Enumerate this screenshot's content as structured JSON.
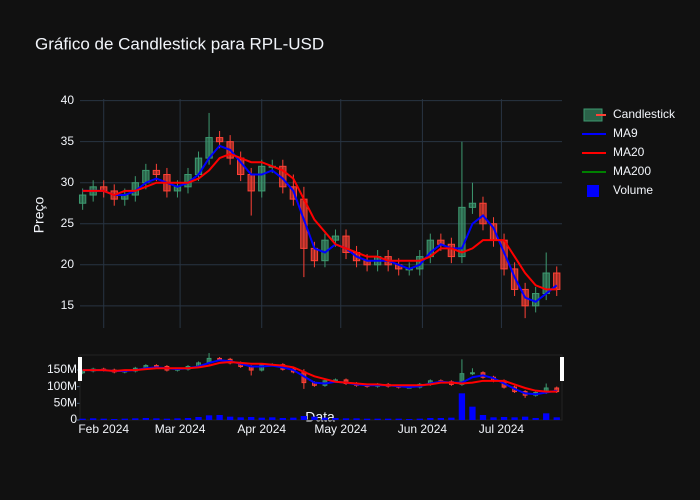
{
  "chart_data": {
    "type": "candlestick",
    "title": "Gráfico de Candlestick para RPL-USD",
    "xlabel": "Data",
    "ylabel": "Preço",
    "x": [
      "2024-01-24",
      "2024-01-28",
      "2024-02-01",
      "2024-02-05",
      "2024-02-09",
      "2024-02-13",
      "2024-02-17",
      "2024-02-21",
      "2024-02-25",
      "2024-02-29",
      "2024-03-04",
      "2024-03-08",
      "2024-03-12",
      "2024-03-16",
      "2024-03-20",
      "2024-03-24",
      "2024-03-28",
      "2024-04-01",
      "2024-04-05",
      "2024-04-09",
      "2024-04-13",
      "2024-04-17",
      "2024-04-21",
      "2024-04-25",
      "2024-04-29",
      "2024-05-03",
      "2024-05-07",
      "2024-05-11",
      "2024-05-15",
      "2024-05-19",
      "2024-05-23",
      "2024-05-27",
      "2024-05-31",
      "2024-06-04",
      "2024-06-08",
      "2024-06-12",
      "2024-06-16",
      "2024-06-20",
      "2024-06-24",
      "2024-06-28",
      "2024-07-02",
      "2024-07-06",
      "2024-07-10",
      "2024-07-14",
      "2024-07-18",
      "2024-07-22"
    ],
    "series": [
      {
        "name": "Candlestick",
        "increasing_color": "#3d9970",
        "decreasing_color": "#ff4136",
        "open": [
          27.5,
          28.5,
          29.5,
          29,
          28,
          28.5,
          30,
          31.5,
          31,
          29,
          29.5,
          31,
          33,
          35.5,
          35,
          33,
          31,
          29,
          32,
          32,
          29.5,
          28,
          22,
          20.5,
          23,
          23.5,
          21.5,
          20.5,
          20,
          21,
          20,
          19.5,
          19.5,
          21,
          23,
          22.5,
          21,
          27,
          27.5,
          25,
          23,
          19.5,
          17,
          15,
          16.5,
          19
        ],
        "high": [
          29.3,
          30.3,
          30.3,
          29.8,
          29.3,
          30.8,
          32.3,
          32.3,
          31.8,
          30.3,
          31.8,
          33.8,
          38.5,
          36.3,
          35.8,
          33.8,
          31.8,
          32.8,
          32.8,
          32.8,
          31,
          29.5,
          22.8,
          23.8,
          24.3,
          24.3,
          22.3,
          21.3,
          21.8,
          21.8,
          20.8,
          20.3,
          21.8,
          23.8,
          23.8,
          23.3,
          35,
          30,
          28.3,
          25.8,
          23.8,
          20.3,
          17.8,
          17.3,
          21.5,
          19.8
        ],
        "low": [
          26.7,
          27.7,
          28.2,
          27.2,
          27.2,
          27.7,
          29.2,
          30.2,
          28.2,
          28.2,
          28.7,
          30.2,
          32.2,
          34.2,
          32.2,
          30.2,
          26,
          28.2,
          31.2,
          28.7,
          27.2,
          18.5,
          19.7,
          19.7,
          22.2,
          20.7,
          19.7,
          19.2,
          19.2,
          19.2,
          18.7,
          18.7,
          18.7,
          20.2,
          21.7,
          20.2,
          20.2,
          26.2,
          24.2,
          22.2,
          18.7,
          16.2,
          13.5,
          14.2,
          15.7,
          16.2
        ],
        "close": [
          28.5,
          29.5,
          29,
          28,
          28.5,
          30,
          31.5,
          31,
          29,
          29.5,
          31,
          33,
          35.5,
          35,
          33,
          31,
          29,
          32,
          32,
          29.5,
          28,
          22,
          20.5,
          23,
          23.5,
          21.5,
          20.5,
          20,
          21,
          20,
          19.5,
          19.5,
          21,
          23,
          22.5,
          21,
          27,
          27.5,
          25,
          23,
          19.5,
          17,
          15,
          16.5,
          19,
          17
        ]
      },
      {
        "name": "MA9",
        "color": "blue",
        "values": [
          29,
          29,
          29,
          28.5,
          28.5,
          29,
          30,
          30.5,
          30,
          29.5,
          30,
          31,
          33,
          34.5,
          34,
          32.5,
          31,
          31,
          31.5,
          30.5,
          29,
          25.5,
          22,
          21.5,
          22.5,
          22,
          21,
          20.5,
          20.5,
          20.5,
          20,
          19.5,
          20,
          21.5,
          22.5,
          22,
          22,
          25,
          26,
          24.5,
          21.5,
          18.5,
          16,
          15.5,
          16.5,
          17.5
        ]
      },
      {
        "name": "MA20",
        "color": "red",
        "values": [
          29,
          29,
          29,
          28.5,
          29,
          29,
          29.5,
          30,
          30,
          30,
          30,
          30.5,
          31.5,
          33,
          33.5,
          33,
          32.5,
          32.5,
          32,
          31.5,
          30.5,
          28,
          25.5,
          24,
          22.5,
          22,
          21.5,
          21,
          21,
          20.5,
          20.5,
          20.5,
          20.5,
          21,
          22,
          22,
          21.5,
          22,
          23,
          23,
          23,
          21,
          19,
          17.5,
          17,
          17
        ]
      },
      {
        "name": "MA200",
        "color": "green",
        "values": [
          null,
          null,
          null,
          null,
          null,
          null,
          null,
          null,
          null,
          null,
          null,
          null,
          null,
          null,
          null,
          null,
          null,
          null,
          null,
          null,
          null,
          null,
          null,
          null,
          null,
          null,
          null,
          null,
          null,
          null,
          null,
          null,
          null,
          null,
          null,
          null,
          null,
          null,
          null,
          null,
          null,
          null,
          null,
          null,
          null,
          null
        ]
      },
      {
        "name": "Volume",
        "color": "blue",
        "axis": "y2",
        "values": [
          4000000,
          5000000,
          4000000,
          3000000,
          4000000,
          5000000,
          6000000,
          5000000,
          4000000,
          5000000,
          6000000,
          9000000,
          14000000,
          15000000,
          10000000,
          8000000,
          9000000,
          7000000,
          8000000,
          6000000,
          7000000,
          12000000,
          10000000,
          7000000,
          6000000,
          5000000,
          5000000,
          4000000,
          4000000,
          4000000,
          4000000,
          3000000,
          4000000,
          6000000,
          6000000,
          7000000,
          80000000,
          40000000,
          15000000,
          8000000,
          9000000,
          8000000,
          10000000,
          6000000,
          20000000,
          8000000
        ]
      }
    ],
    "xlim": [
      "2024-01-23",
      "2024-07-24"
    ],
    "xticks": [
      {
        "value": "2024-02-01",
        "label": "Feb 2024"
      },
      {
        "value": "2024-03-01",
        "label": "Mar 2024"
      },
      {
        "value": "2024-04-01",
        "label": "Apr 2024"
      },
      {
        "value": "2024-05-01",
        "label": "May 2024"
      },
      {
        "value": "2024-06-01",
        "label": "Jun 2024"
      },
      {
        "value": "2024-07-01",
        "label": "Jul 2024"
      }
    ],
    "ylim": [
      12.3,
      40.2
    ],
    "yticks": [
      15,
      20,
      25,
      30,
      35,
      40
    ],
    "y2lim": [
      0,
      195000000
    ],
    "y2ticks": [
      0,
      {
        "value": 50000000,
        "label": "50M"
      },
      {
        "value": 100000000,
        "label": "100M"
      },
      {
        "value": 150000000,
        "label": "150M"
      }
    ],
    "grid": true
  }
}
